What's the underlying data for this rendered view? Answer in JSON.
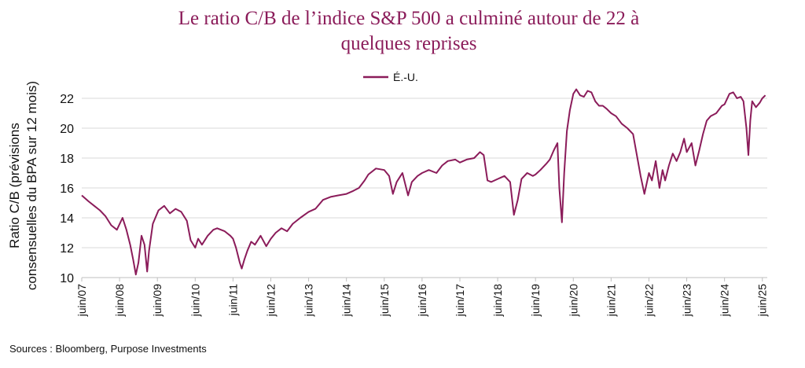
{
  "chart_data": {
    "type": "line",
    "title_line1": "Le ratio C/B de l’indice S&P 500 a culminé autour de 22 à",
    "title_line2": "quelques reprises",
    "ylabel_line1": "Ratio C/B (prévisions",
    "ylabel_line2": "consensuelles du BPA sur 12 mois)",
    "xlabel": "",
    "ylim": [
      10,
      23
    ],
    "yticks": [
      10,
      12,
      14,
      16,
      18,
      20,
      22
    ],
    "xlim": [
      2007.42,
      2025.55
    ],
    "xticks": [
      {
        "pos": 2007.42,
        "label": "juin/07"
      },
      {
        "pos": 2008.42,
        "label": "juin/08"
      },
      {
        "pos": 2009.42,
        "label": "juin/09"
      },
      {
        "pos": 2010.42,
        "label": "juin/10"
      },
      {
        "pos": 2011.42,
        "label": "juin/11"
      },
      {
        "pos": 2012.42,
        "label": "juin/12"
      },
      {
        "pos": 2013.42,
        "label": "juin/13"
      },
      {
        "pos": 2014.42,
        "label": "juin/14"
      },
      {
        "pos": 2015.42,
        "label": "juin/15"
      },
      {
        "pos": 2016.42,
        "label": "juin/16"
      },
      {
        "pos": 2017.42,
        "label": "juin/17"
      },
      {
        "pos": 2018.42,
        "label": "juin/18"
      },
      {
        "pos": 2019.42,
        "label": "juin/19"
      },
      {
        "pos": 2020.42,
        "label": "juin/20"
      },
      {
        "pos": 2021.42,
        "label": "juin/21"
      },
      {
        "pos": 2022.42,
        "label": "juin/22"
      },
      {
        "pos": 2023.42,
        "label": "juin/23"
      },
      {
        "pos": 2024.42,
        "label": "juin/24"
      },
      {
        "pos": 2025.42,
        "label": "juin/25"
      }
    ],
    "grid": true,
    "legend_position": "top-center",
    "series": [
      {
        "name": "É.-U.",
        "color": "#8b1c5a",
        "x": [
          2007.42,
          2007.6,
          2007.75,
          2007.9,
          2008.05,
          2008.2,
          2008.35,
          2008.5,
          2008.6,
          2008.7,
          2008.78,
          2008.85,
          2008.92,
          2009.0,
          2009.08,
          2009.15,
          2009.2,
          2009.3,
          2009.45,
          2009.6,
          2009.75,
          2009.9,
          2010.05,
          2010.2,
          2010.3,
          2010.42,
          2010.5,
          2010.6,
          2010.75,
          2010.9,
          2011.0,
          2011.2,
          2011.35,
          2011.42,
          2011.5,
          2011.6,
          2011.65,
          2011.72,
          2011.8,
          2011.9,
          2012.0,
          2012.15,
          2012.3,
          2012.42,
          2012.55,
          2012.7,
          2012.85,
          2013.0,
          2013.2,
          2013.42,
          2013.6,
          2013.8,
          2014.0,
          2014.2,
          2014.42,
          2014.6,
          2014.75,
          2014.9,
          2015.0,
          2015.2,
          2015.42,
          2015.55,
          2015.65,
          2015.75,
          2015.9,
          2016.05,
          2016.15,
          2016.3,
          2016.42,
          2016.6,
          2016.8,
          2016.95,
          2017.1,
          2017.3,
          2017.42,
          2017.6,
          2017.8,
          2017.95,
          2018.05,
          2018.15,
          2018.25,
          2018.42,
          2018.6,
          2018.75,
          2018.85,
          2018.95,
          2019.05,
          2019.2,
          2019.35,
          2019.42,
          2019.55,
          2019.7,
          2019.8,
          2019.9,
          2020.0,
          2020.05,
          2020.12,
          2020.18,
          2020.25,
          2020.33,
          2020.42,
          2020.5,
          2020.6,
          2020.7,
          2020.8,
          2020.9,
          2021.0,
          2021.1,
          2021.2,
          2021.3,
          2021.42,
          2021.55,
          2021.7,
          2021.85,
          2022.0,
          2022.1,
          2022.2,
          2022.3,
          2022.42,
          2022.5,
          2022.6,
          2022.7,
          2022.78,
          2022.85,
          2022.95,
          2023.05,
          2023.15,
          2023.25,
          2023.35,
          2023.42,
          2023.55,
          2023.65,
          2023.75,
          2023.85,
          2023.95,
          2024.05,
          2024.2,
          2024.35,
          2024.42,
          2024.55,
          2024.65,
          2024.75,
          2024.85,
          2024.92,
          2025.0,
          2025.05,
          2025.1,
          2025.15,
          2025.25,
          2025.35,
          2025.42,
          2025.5
        ],
        "values": [
          15.5,
          15.1,
          14.8,
          14.5,
          14.1,
          13.5,
          13.2,
          14.0,
          13.2,
          12.2,
          11.2,
          10.2,
          11.0,
          12.8,
          12.2,
          10.4,
          11.8,
          13.6,
          14.5,
          14.8,
          14.3,
          14.6,
          14.4,
          13.8,
          12.5,
          12.0,
          12.6,
          12.2,
          12.8,
          13.2,
          13.3,
          13.1,
          12.8,
          12.6,
          12.0,
          11.0,
          10.6,
          11.2,
          11.8,
          12.4,
          12.2,
          12.8,
          12.1,
          12.6,
          13.0,
          13.3,
          13.1,
          13.6,
          14.0,
          14.4,
          14.6,
          15.2,
          15.4,
          15.5,
          15.6,
          15.8,
          16.0,
          16.5,
          16.9,
          17.3,
          17.2,
          16.8,
          15.6,
          16.4,
          17.0,
          15.5,
          16.4,
          16.8,
          17.0,
          17.2,
          17.0,
          17.5,
          17.8,
          17.9,
          17.7,
          17.9,
          18.0,
          18.4,
          18.2,
          16.5,
          16.4,
          16.6,
          16.8,
          16.4,
          14.2,
          15.2,
          16.6,
          17.0,
          16.8,
          16.9,
          17.2,
          17.6,
          17.9,
          18.5,
          19.0,
          16.0,
          13.7,
          17.0,
          19.8,
          21.2,
          22.3,
          22.6,
          22.2,
          22.1,
          22.5,
          22.4,
          21.8,
          21.5,
          21.5,
          21.3,
          21.0,
          20.8,
          20.3,
          20.0,
          19.6,
          18.2,
          16.8,
          15.6,
          17.0,
          16.5,
          17.8,
          16.0,
          17.2,
          16.5,
          17.5,
          18.3,
          17.8,
          18.4,
          19.3,
          18.4,
          19.0,
          17.5,
          18.5,
          19.6,
          20.5,
          20.8,
          21.0,
          21.5,
          21.6,
          22.3,
          22.4,
          22.0,
          22.1,
          21.8,
          20.0,
          18.2,
          20.5,
          21.8,
          21.4,
          21.7,
          22.0,
          22.2
        ]
      }
    ]
  },
  "source": "Sources : Bloomberg, Purpose Investments"
}
